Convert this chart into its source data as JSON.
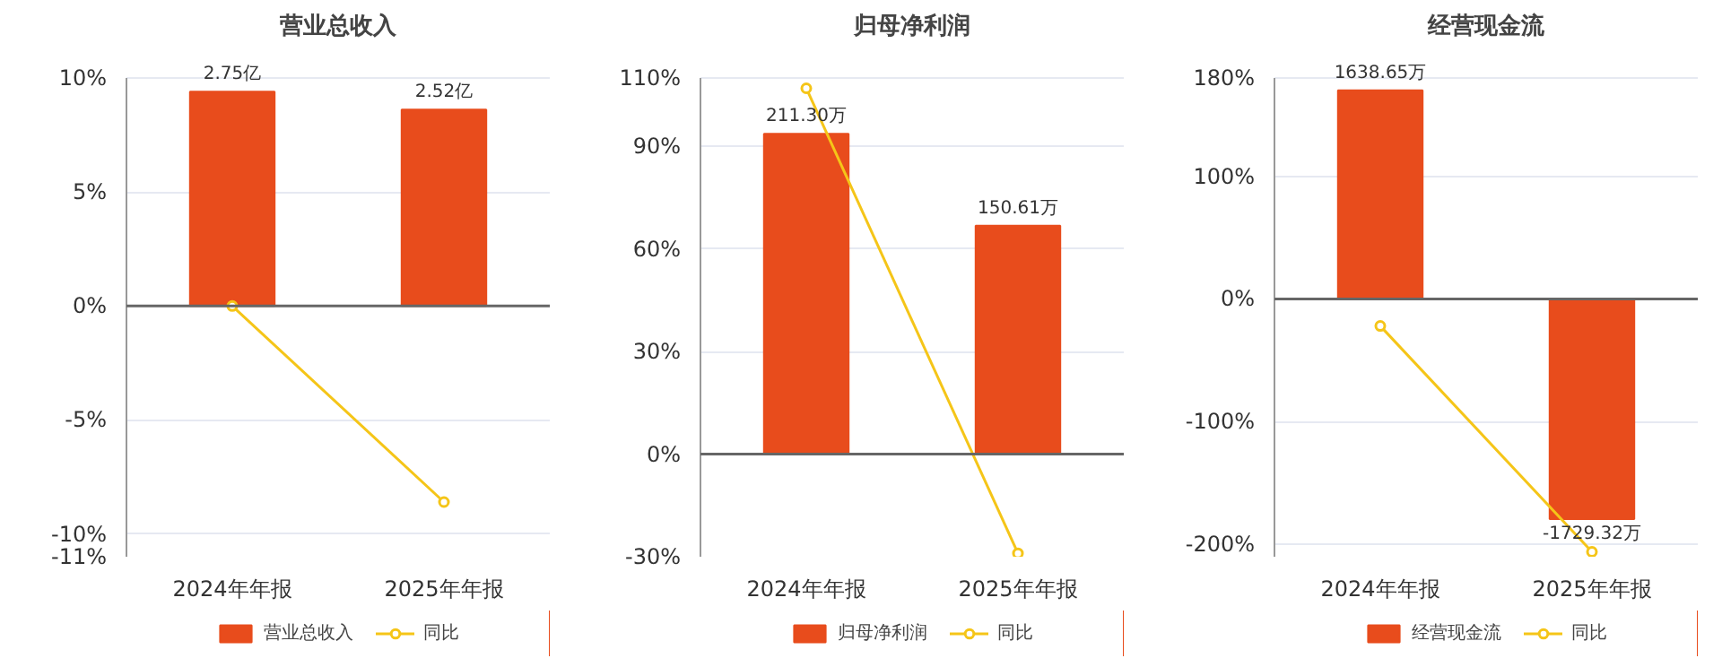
{
  "chart_data": [
    {
      "type": "bar",
      "title": "营业总收入",
      "categories": [
        "2024年年报",
        "2025年年报"
      ],
      "ylim": [
        -11,
        10
      ],
      "yticks": [
        {
          "value": 10,
          "label": "10%"
        },
        {
          "value": 5,
          "label": "5%"
        },
        {
          "value": 0,
          "label": "0%"
        },
        {
          "value": -5,
          "label": "-5%"
        },
        {
          "value": -10,
          "label": "-10%"
        },
        {
          "value": -11,
          "label": "-11%"
        }
      ],
      "y2lim": [
        -3.216,
        2.924
      ],
      "grid": "y",
      "legend": "bottom",
      "marker": "circle",
      "line_style": "solid",
      "series": [
        {
          "name": "营业总收入",
          "axis": "y2",
          "color": "#e84c1c",
          "values": [
            2.75,
            2.52
          ],
          "value_labels": [
            "2.75亿",
            "2.52亿"
          ]
        },
        {
          "name": "同比",
          "type": "line",
          "axis": "y",
          "color": "#f5c518",
          "values": [
            0,
            -8.6
          ]
        }
      ]
    },
    {
      "type": "bar",
      "title": "归母净利润",
      "categories": [
        "2024年年报",
        "2025年年报"
      ],
      "ylim": [
        -30,
        110
      ],
      "yticks": [
        {
          "value": 110,
          "label": "110%"
        },
        {
          "value": 90,
          "label": "90%"
        },
        {
          "value": 60,
          "label": "60%"
        },
        {
          "value": 30,
          "label": "30%"
        },
        {
          "value": 0,
          "label": "0%"
        },
        {
          "value": -30,
          "label": "-30%"
        }
      ],
      "y2lim": [
        -67.66,
        248.08
      ],
      "grid": "y",
      "legend": "bottom",
      "marker": "circle",
      "line_style": "solid",
      "series": [
        {
          "name": "归母净利润",
          "axis": "y2",
          "color": "#e84c1c",
          "values": [
            211.3,
            150.61
          ],
          "value_labels": [
            "211.30万",
            "150.61万"
          ]
        },
        {
          "name": "同比",
          "type": "line",
          "axis": "y",
          "color": "#f5c518",
          "values": [
            107,
            -29
          ]
        }
      ]
    },
    {
      "type": "bar",
      "title": "经营现金流",
      "categories": [
        "2024年年报",
        "2025年年报"
      ],
      "ylim": [
        -210,
        180
      ],
      "yticks": [
        {
          "value": 180,
          "label": "180%"
        },
        {
          "value": 100,
          "label": "100%"
        },
        {
          "value": 0,
          "label": "0%"
        },
        {
          "value": -100,
          "label": "-100%"
        },
        {
          "value": -200,
          "label": "-200%"
        }
      ],
      "y2lim": [
        -2025,
        1736
      ],
      "grid": "y",
      "legend": "bottom",
      "marker": "circle",
      "line_style": "solid",
      "series": [
        {
          "name": "经营现金流",
          "axis": "y2",
          "color": "#e84c1c",
          "values": [
            1638.65,
            -1729.32
          ],
          "value_labels": [
            "1638.65万",
            "-1729.32万"
          ]
        },
        {
          "name": "同比",
          "type": "line",
          "axis": "y",
          "color": "#f5c518",
          "values": [
            -22,
            -206
          ]
        }
      ]
    }
  ]
}
